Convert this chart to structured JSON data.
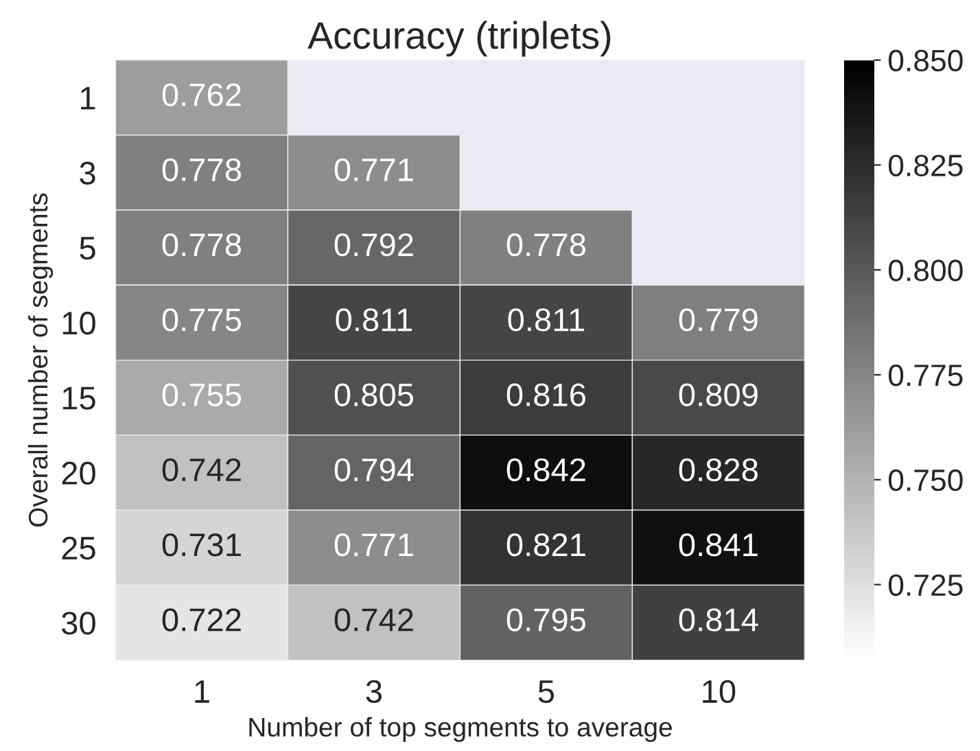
{
  "chart_data": {
    "type": "heatmap",
    "title": "Accuracy (triplets)",
    "xlabel": "Number of top segments to average",
    "ylabel": "Overall number of segments",
    "categories": [
      "1",
      "3",
      "5",
      "10"
    ],
    "y_categories": [
      "1",
      "3",
      "5",
      "10",
      "15",
      "20",
      "25",
      "30"
    ],
    "cells": [
      [
        0.762,
        null,
        null,
        null
      ],
      [
        0.778,
        0.771,
        null,
        null
      ],
      [
        0.778,
        0.792,
        0.778,
        null
      ],
      [
        0.775,
        0.811,
        0.811,
        0.779
      ],
      [
        0.755,
        0.805,
        0.816,
        0.809
      ],
      [
        0.742,
        0.794,
        0.842,
        0.828
      ],
      [
        0.731,
        0.771,
        0.821,
        0.841
      ],
      [
        0.722,
        0.742,
        0.795,
        0.814
      ]
    ],
    "clim": [
      0.707,
      0.85
    ],
    "cticks": [
      0.725,
      {
        "value": 0.75,
        "label": "0.750"
      },
      0.775,
      {
        "value": 0.8,
        "label": "0.800"
      },
      0.825,
      {
        "value": 0.85,
        "label": "0.850"
      }
    ],
    "data_labels": true
  }
}
